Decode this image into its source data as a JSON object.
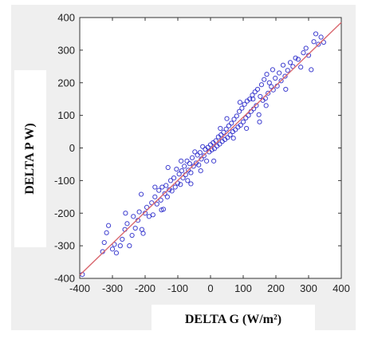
{
  "chart_data": {
    "type": "scatter",
    "title": "",
    "xlabel": "DELTA G (W/m²)",
    "ylabel": "DELTA P W)",
    "xlim": [
      -400,
      400
    ],
    "ylim": [
      -400,
      400
    ],
    "x_ticks": [
      "-400",
      "-300",
      "-200",
      "-100",
      "0",
      "100",
      "200",
      "300",
      "400"
    ],
    "y_ticks": [
      "-400",
      "-300",
      "-200",
      "-100",
      "0",
      "100",
      "200",
      "300",
      "400"
    ],
    "grid": false,
    "legend": "none",
    "fit_line": {
      "x": [
        -400,
        400
      ],
      "y": [
        -390,
        385
      ]
    },
    "series": [
      {
        "points": [
          [
            -392,
            -388
          ],
          [
            -330,
            -318
          ],
          [
            -325,
            -290
          ],
          [
            -318,
            -260
          ],
          [
            -312,
            -238
          ],
          [
            -300,
            -310
          ],
          [
            -294,
            -296
          ],
          [
            -288,
            -322
          ],
          [
            -276,
            -300
          ],
          [
            -270,
            -280
          ],
          [
            -262,
            -250
          ],
          [
            -255,
            -232
          ],
          [
            -248,
            -300
          ],
          [
            -240,
            -268
          ],
          [
            -236,
            -210
          ],
          [
            -230,
            -246
          ],
          [
            -222,
            -222
          ],
          [
            -218,
            -196
          ],
          [
            -212,
            -142
          ],
          [
            -206,
            -262
          ],
          [
            -200,
            -200
          ],
          [
            -195,
            -182
          ],
          [
            -188,
            -210
          ],
          [
            -180,
            -168
          ],
          [
            -176,
            -205
          ],
          [
            -170,
            -150
          ],
          [
            -164,
            -172
          ],
          [
            -158,
            -130
          ],
          [
            -152,
            -160
          ],
          [
            -148,
            -120
          ],
          [
            -144,
            -188
          ],
          [
            -140,
            -140
          ],
          [
            -136,
            -115
          ],
          [
            -132,
            -150
          ],
          [
            -126,
            -128
          ],
          [
            -122,
            -100
          ],
          [
            -118,
            -132
          ],
          [
            -112,
            -92
          ],
          [
            -108,
            -120
          ],
          [
            -104,
            -65
          ],
          [
            -100,
            -108
          ],
          [
            -96,
            -80
          ],
          [
            -92,
            -112
          ],
          [
            -88,
            -70
          ],
          [
            -84,
            -92
          ],
          [
            -80,
            -56
          ],
          [
            -76,
            -82
          ],
          [
            -72,
            -40
          ],
          [
            -68,
            -68
          ],
          [
            -64,
            -48
          ],
          [
            -60,
            -76
          ],
          [
            -56,
            -30
          ],
          [
            -52,
            -56
          ],
          [
            -48,
            -12
          ],
          [
            -44,
            -46
          ],
          [
            -40,
            -22
          ],
          [
            -36,
            -52
          ],
          [
            -32,
            -14
          ],
          [
            -28,
            -34
          ],
          [
            -24,
            4
          ],
          [
            -20,
            -24
          ],
          [
            -16,
            -4
          ],
          [
            -12,
            -40
          ],
          [
            -8,
            2
          ],
          [
            -4,
            -12
          ],
          [
            0,
            10
          ],
          [
            4,
            -6
          ],
          [
            8,
            16
          ],
          [
            12,
            -2
          ],
          [
            16,
            22
          ],
          [
            20,
            6
          ],
          [
            24,
            34
          ],
          [
            28,
            12
          ],
          [
            32,
            40
          ],
          [
            36,
            20
          ],
          [
            40,
            48
          ],
          [
            44,
            26
          ],
          [
            48,
            58
          ],
          [
            52,
            32
          ],
          [
            56,
            68
          ],
          [
            60,
            40
          ],
          [
            64,
            76
          ],
          [
            68,
            50
          ],
          [
            72,
            88
          ],
          [
            76,
            56
          ],
          [
            80,
            98
          ],
          [
            84,
            64
          ],
          [
            88,
            112
          ],
          [
            92,
            70
          ],
          [
            96,
            122
          ],
          [
            100,
            80
          ],
          [
            104,
            134
          ],
          [
            108,
            92
          ],
          [
            112,
            144
          ],
          [
            116,
            100
          ],
          [
            120,
            150
          ],
          [
            124,
            112
          ],
          [
            128,
            162
          ],
          [
            132,
            120
          ],
          [
            136,
            172
          ],
          [
            140,
            130
          ],
          [
            144,
            180
          ],
          [
            148,
            102
          ],
          [
            152,
            158
          ],
          [
            156,
            194
          ],
          [
            160,
            146
          ],
          [
            164,
            210
          ],
          [
            168,
            152
          ],
          [
            172,
            226
          ],
          [
            176,
            168
          ],
          [
            180,
            200
          ],
          [
            186,
            188
          ],
          [
            192,
            178
          ],
          [
            198,
            214
          ],
          [
            204,
            190
          ],
          [
            210,
            230
          ],
          [
            216,
            206
          ],
          [
            222,
            254
          ],
          [
            228,
            220
          ],
          [
            236,
            238
          ],
          [
            244,
            262
          ],
          [
            252,
            250
          ],
          [
            260,
            276
          ],
          [
            268,
            272
          ],
          [
            276,
            248
          ],
          [
            284,
            292
          ],
          [
            292,
            306
          ],
          [
            300,
            284
          ],
          [
            308,
            240
          ],
          [
            316,
            326
          ],
          [
            322,
            350
          ],
          [
            330,
            318
          ],
          [
            338,
            340
          ],
          [
            346,
            324
          ],
          [
            -150,
            -190
          ],
          [
            -90,
            -40
          ],
          [
            -60,
            -110
          ],
          [
            -30,
            -70
          ],
          [
            10,
            -40
          ],
          [
            30,
            60
          ],
          [
            50,
            90
          ],
          [
            70,
            30
          ],
          [
            90,
            140
          ],
          [
            110,
            60
          ],
          [
            130,
            150
          ],
          [
            150,
            80
          ],
          [
            170,
            130
          ],
          [
            190,
            240
          ],
          [
            230,
            180
          ],
          [
            -260,
            -200
          ],
          [
            -210,
            -250
          ],
          [
            -170,
            -120
          ],
          [
            -130,
            -60
          ],
          [
            -70,
            -100
          ]
        ]
      }
    ],
    "colors": {
      "points": "#1f1fc8",
      "fit_line": "#d9686f",
      "panel": "#efefef",
      "plot_bg": "#ffffff",
      "axis": "#333333"
    }
  }
}
